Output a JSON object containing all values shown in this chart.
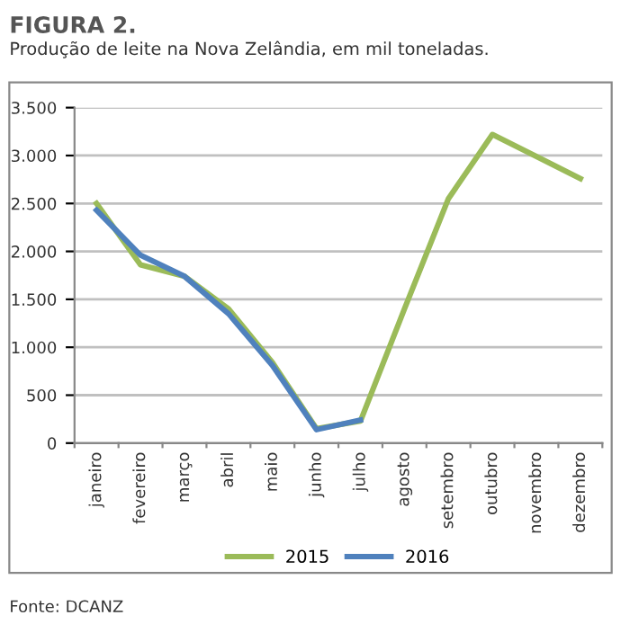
{
  "chart_data": {
    "type": "line",
    "title": "FIGURA 2.",
    "subtitle": "Produção de leite na Nova Zelândia, em mil toneladas.",
    "categories": [
      "janeiro",
      "fevereiro",
      "março",
      "abril",
      "maio",
      "junho",
      "julho",
      "agosto",
      "setembro",
      "outubro",
      "novembro",
      "dezembro"
    ],
    "series": [
      {
        "name": "2015",
        "color": "#9bbb59",
        "values": [
          2500,
          1860,
          1740,
          1400,
          840,
          150,
          230,
          1400,
          2550,
          3220,
          2990,
          2760
        ]
      },
      {
        "name": "2016",
        "color": "#4f81bd",
        "values": [
          2430,
          1960,
          1740,
          1350,
          810,
          140,
          240,
          null,
          null,
          null,
          null,
          null
        ]
      }
    ],
    "ylim": [
      0,
      3500
    ],
    "yticks": [
      {
        "value": 0,
        "label": "0"
      },
      {
        "value": 500,
        "label": "500"
      },
      {
        "value": 1000,
        "label": "1.000"
      },
      {
        "value": 1500,
        "label": "1.500"
      },
      {
        "value": 2000,
        "label": "2.000"
      },
      {
        "value": 2500,
        "label": "2.500"
      },
      {
        "value": 3000,
        "label": "3.000"
      },
      {
        "value": 3500,
        "label": "3.500"
      }
    ],
    "grid": "y",
    "legend": "bottom",
    "marker": "none",
    "line_style": "solid",
    "annotations": [
      "Fonte: DCANZ"
    ]
  }
}
